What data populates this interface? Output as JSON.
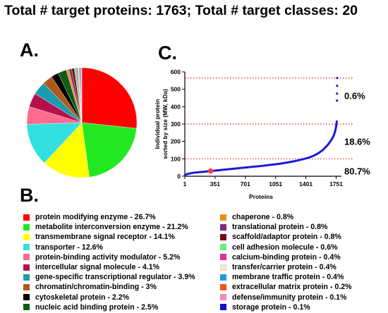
{
  "header": {
    "title": "Total  # target proteins: 1763; Total  # target classes: 20"
  },
  "panels": {
    "a": "A.",
    "b": "B.",
    "c": "C."
  },
  "chart_data": [
    {
      "type": "pie",
      "slices": [
        {
          "label": "protein modifying enzyme - 26.7%",
          "value": 26.7,
          "color": "#ff0000"
        },
        {
          "label": "metabolite interconversion enzyme - 21.2%",
          "value": 21.2,
          "color": "#22e822"
        },
        {
          "label": "transmembrane signal receptor - 14.1%",
          "value": 14.1,
          "color": "#ffff00"
        },
        {
          "label": "transporter - 12.6%",
          "value": 12.6,
          "color": "#33e0e0"
        },
        {
          "label": "protein-binding activity modulator - 5.2%",
          "value": 5.2,
          "color": "#ff6b8e"
        },
        {
          "label": "intercellular signal molecule - 4.1%",
          "value": 4.1,
          "color": "#b5104a"
        },
        {
          "label": "gene-specific transcriptional regulator - 3.9%",
          "value": 3.9,
          "color": "#1a9bb0"
        },
        {
          "label": "chromatin/chromatin-binding - 3%",
          "value": 3.0,
          "color": "#b05a1a"
        },
        {
          "label": "cytoskeletal protein - 2.2%",
          "value": 2.2,
          "color": "#000000"
        },
        {
          "label": "nucleic acid binding protein - 2.5%",
          "value": 2.5,
          "color": "#0d5c14"
        },
        {
          "label": "chaperone - 0.8%",
          "value": 0.8,
          "color": "#e8901c"
        },
        {
          "label": "translational protein - 0.8%",
          "value": 0.8,
          "color": "#7a2a80"
        },
        {
          "label": "scaffold/adaptor protein - 0.8%",
          "value": 0.8,
          "color": "#7a0a10"
        },
        {
          "label": "cell adhesion molecule - 0.6%",
          "value": 0.6,
          "color": "#66f07a"
        },
        {
          "label": "calcium-binding protein - 0.4%",
          "value": 0.4,
          "color": "#e0309a"
        },
        {
          "label": "transfer/carrier protein - 0.4%",
          "value": 0.4,
          "color": "#f4e8c8"
        },
        {
          "label": "membrane traffic protein - 0.4%",
          "value": 0.4,
          "color": "#1f9be0"
        },
        {
          "label": "extracellular matrix protein - 0.2%",
          "value": 0.2,
          "color": "#e85a1a"
        },
        {
          "label": "defense/immunity protein - 0.1%",
          "value": 0.1,
          "color": "#f08abf"
        },
        {
          "label": "storage protein - 0.1%",
          "value": 0.1,
          "color": "#1010cc"
        }
      ]
    },
    {
      "type": "scatter",
      "xlabel": "Proteins",
      "ylabel": "Individual protein sorted by size (MW, kDa)",
      "xlim": [
        1,
        1763
      ],
      "ylim": [
        0,
        600
      ],
      "xticks": [
        1,
        351,
        701,
        1051,
        1401,
        1751
      ],
      "yticks": [
        0,
        100,
        200,
        300,
        400,
        500,
        600
      ],
      "thresholds": [
        100,
        300,
        565
      ],
      "threshold_color": "#e02020",
      "series_color": "#1a1ad6",
      "curve_x": [
        1,
        10,
        50,
        100,
        200,
        300,
        400,
        500,
        600,
        700,
        800,
        900,
        1000,
        1100,
        1200,
        1300,
        1400,
        1450,
        1500,
        1550,
        1600,
        1650,
        1690,
        1720,
        1740,
        1750,
        1755,
        1758
      ],
      "curve_y": [
        5,
        10,
        15,
        20,
        25,
        30,
        35,
        40,
        45,
        50,
        55,
        60,
        66,
        72,
        80,
        90,
        102,
        110,
        120,
        134,
        152,
        178,
        205,
        230,
        260,
        285,
        300,
        315
      ],
      "outliers_x": [
        1760,
        1761,
        1762,
        1763
      ],
      "outliers_y": [
        435,
        475,
        520,
        565
      ],
      "highlight": {
        "x": 300,
        "y": 30,
        "color": "#ff4040"
      },
      "annotations": [
        "0.6%",
        "18.6%",
        "80.7%"
      ]
    }
  ]
}
